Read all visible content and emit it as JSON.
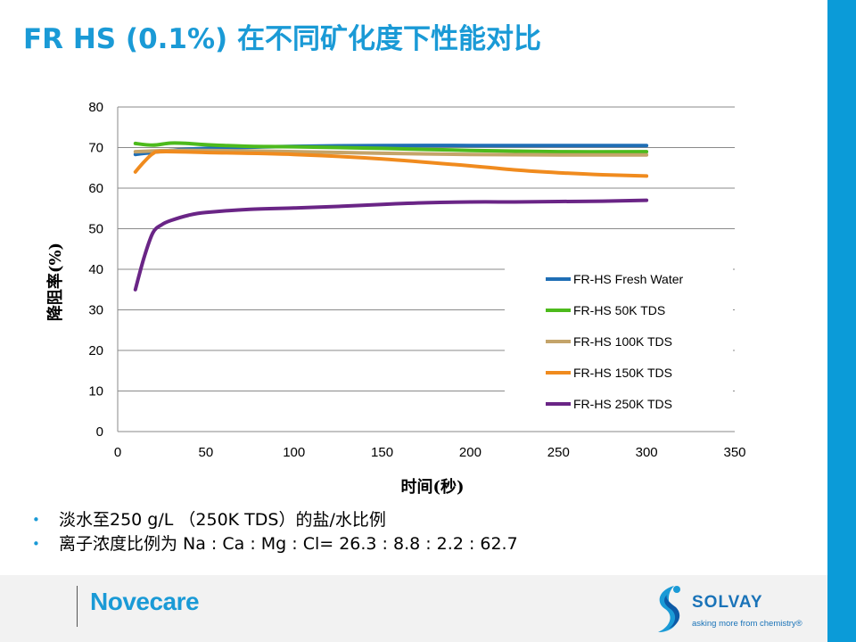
{
  "slide": {
    "title": "FR HS (0.1%) 在不同矿化度下性能对比"
  },
  "chart_data": {
    "type": "line",
    "title": "",
    "xlabel": "时间(秒)",
    "ylabel": "降阻率(%)",
    "xlim": [
      0,
      350
    ],
    "ylim": [
      0,
      80
    ],
    "xticks": [
      0,
      50,
      100,
      150,
      200,
      250,
      300,
      350
    ],
    "yticks": [
      0,
      10,
      20,
      30,
      40,
      50,
      60,
      70,
      80
    ],
    "grid": "horizontal",
    "legend": "right",
    "series": [
      {
        "name": "FR-HS Fresh Water",
        "color": "#1f6eb5",
        "points": [
          [
            10,
            68.3
          ],
          [
            30,
            69.3
          ],
          [
            50,
            69.8
          ],
          [
            100,
            70.3
          ],
          [
            150,
            70.5
          ],
          [
            200,
            70.5
          ],
          [
            250,
            70.5
          ],
          [
            300,
            70.5
          ]
        ]
      },
      {
        "name": "FR-HS 50K TDS",
        "color": "#4dba1c",
        "points": [
          [
            10,
            71.0
          ],
          [
            20,
            70.6
          ],
          [
            30,
            71.1
          ],
          [
            40,
            71.0
          ],
          [
            50,
            70.7
          ],
          [
            75,
            70.3
          ],
          [
            100,
            70.2
          ],
          [
            150,
            69.8
          ],
          [
            200,
            69.3
          ],
          [
            250,
            69.0
          ],
          [
            300,
            69.0
          ]
        ]
      },
      {
        "name": "FR-HS 100K TDS",
        "color": "#c4a46a",
        "points": [
          [
            10,
            69.0
          ],
          [
            30,
            69.3
          ],
          [
            50,
            69.3
          ],
          [
            100,
            69.0
          ],
          [
            150,
            68.6
          ],
          [
            200,
            68.3
          ],
          [
            250,
            68.2
          ],
          [
            300,
            68.2
          ]
        ]
      },
      {
        "name": "FR-HS 150K TDS",
        "color": "#f08b1e",
        "points": [
          [
            10,
            64.0
          ],
          [
            15,
            66.5
          ],
          [
            20,
            68.5
          ],
          [
            25,
            69.0
          ],
          [
            50,
            68.8
          ],
          [
            100,
            68.3
          ],
          [
            150,
            67.2
          ],
          [
            200,
            65.5
          ],
          [
            225,
            64.5
          ],
          [
            250,
            63.8
          ],
          [
            275,
            63.3
          ],
          [
            300,
            63.0
          ]
        ]
      },
      {
        "name": "FR-HS 250K TDS",
        "color": "#6a2586",
        "points": [
          [
            10,
            35.0
          ],
          [
            15,
            43.0
          ],
          [
            20,
            49.0
          ],
          [
            25,
            51.0
          ],
          [
            30,
            52.0
          ],
          [
            40,
            53.3
          ],
          [
            50,
            54.0
          ],
          [
            75,
            54.8
          ],
          [
            100,
            55.1
          ],
          [
            125,
            55.5
          ],
          [
            150,
            56.0
          ],
          [
            175,
            56.4
          ],
          [
            200,
            56.6
          ],
          [
            225,
            56.6
          ],
          [
            250,
            56.7
          ],
          [
            275,
            56.8
          ],
          [
            300,
            57.0
          ]
        ]
      }
    ]
  },
  "bullets": [
    "淡水至250 g/L （250K TDS）的盐/水比例",
    "离子浓度比例为 Na : Ca : Mg : Cl= 26.3 : 8.8 : 2.2 : 62.7"
  ],
  "footer": {
    "brand": "Novecare",
    "company": "SOLVAY",
    "tagline": "asking more from chemistry®"
  }
}
